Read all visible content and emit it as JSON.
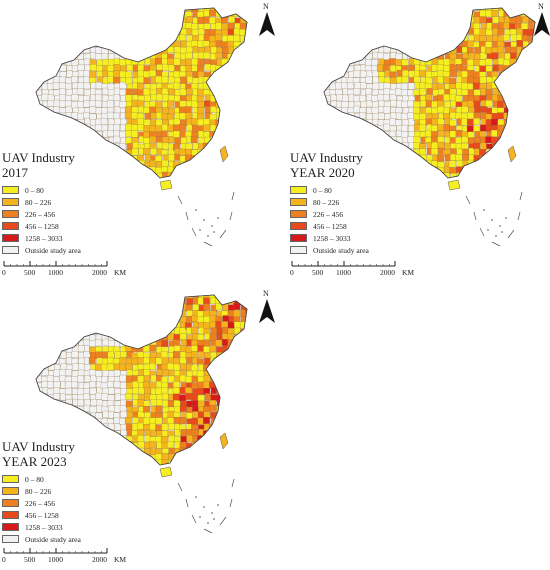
{
  "panels": [
    {
      "title_line1": "UAV Industry",
      "title_line2": "2017",
      "intensity": 0.25
    },
    {
      "title_line1": "UAV Industry",
      "title_line2": "YEAR 2020",
      "intensity": 0.55
    },
    {
      "title_line1": "UAV Industry",
      "title_line2": "YEAR 2023",
      "intensity": 0.7
    }
  ],
  "legend": {
    "classes": [
      {
        "label": "0 – 80",
        "color": "#f5ef22"
      },
      {
        "label": "80 – 226",
        "color": "#f5b41e"
      },
      {
        "label": "226 – 456",
        "color": "#ef8020"
      },
      {
        "label": "456 – 1258",
        "color": "#e84a1c"
      },
      {
        "label": "1258 – 3033",
        "color": "#d7191c"
      }
    ],
    "outside_label": "Outside study area",
    "outside_color": "#f2f2f2"
  },
  "scale": {
    "ticks": [
      "0",
      "500",
      "1000",
      "2000"
    ],
    "unit": "KM"
  },
  "north_label": "N"
}
